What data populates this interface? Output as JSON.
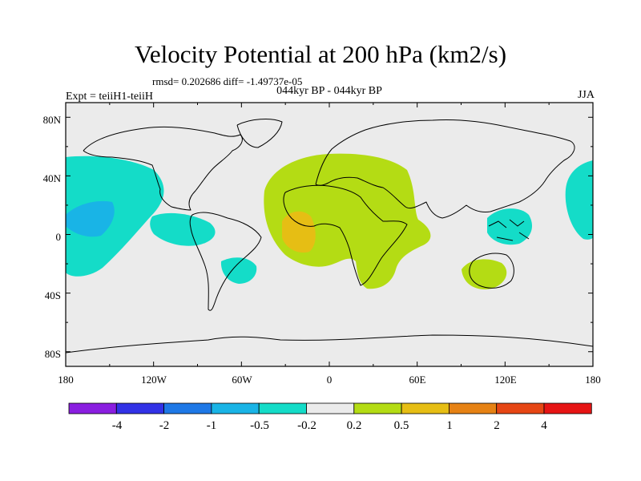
{
  "header": {
    "title": "Velocity Potential at 200 hPa (km2/s)",
    "subtitle": "rmsd= 0.202686 diff= -1.49737e-05",
    "center_label": "044kyr BP - 044kyr BP",
    "left_label": "Expt = teiiH1-teiiH",
    "right_label": "JJA"
  },
  "map": {
    "projection": "cylindrical-equidistant",
    "lon_range": [
      -180,
      180
    ],
    "lat_range": [
      -90,
      90
    ],
    "x_ticks": [
      "180",
      "120W",
      "60W",
      "0",
      "60E",
      "120E",
      "180"
    ],
    "y_ticks": [
      "80N",
      "40N",
      "0",
      "40S",
      "80S"
    ],
    "background_color": "#ebebeb",
    "coastline_color": "#000000"
  },
  "colorbar": {
    "colors": [
      "#8a1ee0",
      "#3232e6",
      "#1e78e6",
      "#19b4e6",
      "#14dcc8",
      "#ebebeb",
      "#b4dc14",
      "#e6be14",
      "#e68214",
      "#e64614",
      "#e61414"
    ],
    "labels": [
      "-4",
      "-2",
      "-1",
      "-0.5",
      "-0.2",
      "0.2",
      "0.5",
      "1",
      "2",
      "4"
    ]
  },
  "regions": [
    {
      "name": "pacific-east-negative",
      "color": "#14dcc8"
    },
    {
      "name": "pacific-east-core",
      "color": "#19b4e6"
    },
    {
      "name": "south-america-west-negative",
      "color": "#14dcc8"
    },
    {
      "name": "south-america-south-negative",
      "color": "#14dcc8"
    },
    {
      "name": "pacific-west-negative",
      "color": "#14dcc8"
    },
    {
      "name": "maritime-continent-negative",
      "color": "#14dcc8"
    },
    {
      "name": "africa-positive",
      "color": "#b4dc14"
    },
    {
      "name": "atlantic-positive-core",
      "color": "#e6be14"
    },
    {
      "name": "australia-positive",
      "color": "#b4dc14"
    }
  ]
}
